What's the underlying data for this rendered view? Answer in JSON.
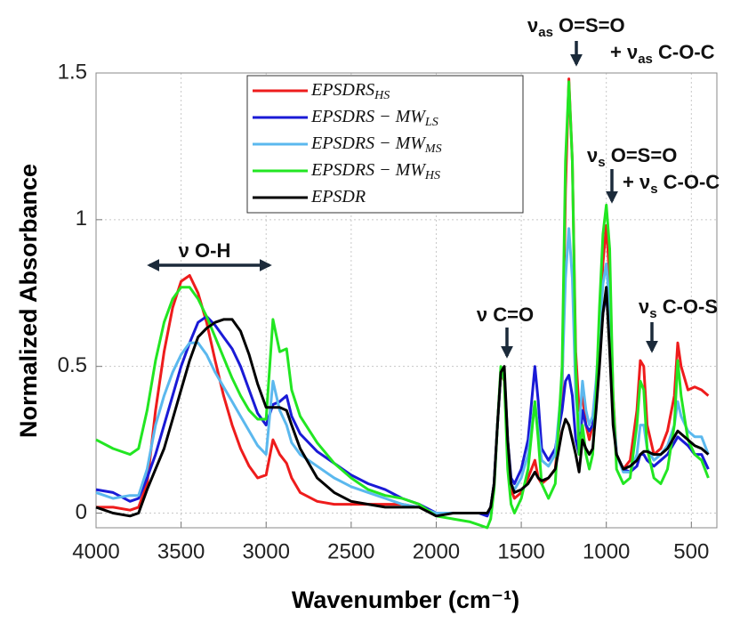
{
  "chart_data": {
    "type": "line",
    "x_label": "Wavenumber (cm⁻¹)",
    "y_label": "Normalized Absorbance",
    "xlim": [
      4000,
      350
    ],
    "ylim": [
      -0.05,
      1.5
    ],
    "xticks": [
      4000,
      3500,
      3000,
      2500,
      2000,
      1500,
      1000,
      500
    ],
    "yticks": [
      0,
      0.5,
      1,
      1.5
    ],
    "grid": true,
    "legend": "top",
    "x": [
      4000,
      3900,
      3800,
      3750,
      3700,
      3650,
      3600,
      3550,
      3500,
      3450,
      3400,
      3350,
      3300,
      3250,
      3200,
      3150,
      3100,
      3050,
      3000,
      2960,
      2920,
      2880,
      2850,
      2800,
      2700,
      2600,
      2500,
      2400,
      2300,
      2200,
      2100,
      2000,
      1900,
      1800,
      1750,
      1700,
      1680,
      1660,
      1640,
      1620,
      1600,
      1580,
      1560,
      1540,
      1500,
      1460,
      1420,
      1400,
      1380,
      1340,
      1300,
      1260,
      1240,
      1220,
      1200,
      1180,
      1160,
      1140,
      1120,
      1100,
      1080,
      1060,
      1040,
      1020,
      1000,
      980,
      960,
      940,
      900,
      860,
      820,
      800,
      780,
      760,
      720,
      680,
      640,
      600,
      580,
      560,
      520,
      480,
      440,
      400
    ],
    "series": [
      {
        "name": "EPSDRS",
        "name_sub": "HS",
        "color": "#ee1c1c",
        "values": [
          0.02,
          0.02,
          0.01,
          0.02,
          0.1,
          0.35,
          0.55,
          0.7,
          0.79,
          0.81,
          0.75,
          0.65,
          0.52,
          0.4,
          0.3,
          0.22,
          0.16,
          0.12,
          0.13,
          0.25,
          0.2,
          0.17,
          0.12,
          0.07,
          0.04,
          0.03,
          0.03,
          0.03,
          0.03,
          0.03,
          0.02,
          0,
          0,
          0,
          0,
          0,
          0.02,
          0.1,
          0.3,
          0.48,
          0.45,
          0.2,
          0.08,
          0.05,
          0.07,
          0.12,
          0.18,
          0.12,
          0.1,
          0.12,
          0.15,
          0.4,
          1.1,
          1.48,
          1.2,
          0.55,
          0.35,
          0.4,
          0.3,
          0.25,
          0.3,
          0.4,
          0.6,
          0.85,
          0.98,
          0.8,
          0.4,
          0.2,
          0.15,
          0.18,
          0.35,
          0.52,
          0.5,
          0.3,
          0.2,
          0.22,
          0.28,
          0.4,
          0.58,
          0.5,
          0.42,
          0.43,
          0.42,
          0.4
        ]
      },
      {
        "name": "EPSDRS − MW",
        "name_sub": "LS",
        "color": "#1a1ad6",
        "values": [
          0.08,
          0.07,
          0.04,
          0.05,
          0.12,
          0.2,
          0.3,
          0.4,
          0.5,
          0.58,
          0.65,
          0.67,
          0.64,
          0.6,
          0.56,
          0.5,
          0.42,
          0.34,
          0.3,
          0.37,
          0.38,
          0.4,
          0.33,
          0.27,
          0.21,
          0.17,
          0.13,
          0.1,
          0.08,
          0.05,
          0.03,
          0,
          0,
          0,
          0,
          -0.01,
          0.02,
          0.1,
          0.3,
          0.48,
          0.48,
          0.25,
          0.12,
          0.1,
          0.15,
          0.25,
          0.5,
          0.38,
          0.22,
          0.18,
          0.22,
          0.35,
          0.45,
          0.47,
          0.4,
          0.25,
          0.2,
          0.35,
          0.3,
          0.28,
          0.3,
          0.4,
          0.55,
          0.68,
          0.75,
          0.6,
          0.35,
          0.2,
          0.15,
          0.14,
          0.16,
          0.2,
          0.2,
          0.18,
          0.16,
          0.18,
          0.2,
          0.24,
          0.26,
          0.25,
          0.23,
          0.2,
          0.2,
          0.15
        ]
      },
      {
        "name": "EPSDRS − MW",
        "name_sub": "MS",
        "color": "#5bb8ee",
        "values": [
          0.07,
          0.05,
          0.06,
          0.06,
          0.15,
          0.3,
          0.4,
          0.48,
          0.54,
          0.58,
          0.58,
          0.54,
          0.48,
          0.43,
          0.38,
          0.33,
          0.28,
          0.23,
          0.2,
          0.45,
          0.35,
          0.3,
          0.24,
          0.2,
          0.16,
          0.12,
          0.09,
          0.07,
          0.05,
          0.03,
          0.02,
          0,
          0,
          0,
          0,
          0,
          0.02,
          0.1,
          0.3,
          0.48,
          0.48,
          0.22,
          0.1,
          0.08,
          0.12,
          0.2,
          0.38,
          0.28,
          0.18,
          0.16,
          0.2,
          0.45,
          0.8,
          0.97,
          0.8,
          0.4,
          0.28,
          0.45,
          0.35,
          0.3,
          0.33,
          0.45,
          0.62,
          0.78,
          0.85,
          0.7,
          0.38,
          0.2,
          0.14,
          0.14,
          0.2,
          0.3,
          0.3,
          0.22,
          0.18,
          0.2,
          0.23,
          0.3,
          0.38,
          0.33,
          0.28,
          0.26,
          0.26,
          0.2
        ]
      },
      {
        "name": "EPSDRS − MW",
        "name_sub": "HS",
        "color": "#22e622",
        "values": [
          0.25,
          0.22,
          0.2,
          0.22,
          0.35,
          0.52,
          0.65,
          0.73,
          0.77,
          0.77,
          0.73,
          0.67,
          0.6,
          0.53,
          0.46,
          0.4,
          0.35,
          0.32,
          0.32,
          0.66,
          0.55,
          0.56,
          0.42,
          0.33,
          0.24,
          0.17,
          0.12,
          0.08,
          0.06,
          0.05,
          0.03,
          -0.01,
          -0.02,
          -0.03,
          -0.04,
          -0.05,
          -0.02,
          0.08,
          0.3,
          0.5,
          0.45,
          0.15,
          0.03,
          0,
          0.05,
          0.15,
          0.38,
          0.25,
          0.1,
          0.05,
          0.1,
          0.5,
          1.2,
          1.47,
          1.2,
          0.5,
          0.2,
          0.3,
          0.2,
          0.15,
          0.2,
          0.4,
          0.7,
          0.95,
          1.05,
          0.9,
          0.4,
          0.15,
          0.1,
          0.12,
          0.3,
          0.45,
          0.42,
          0.22,
          0.12,
          0.1,
          0.15,
          0.3,
          0.52,
          0.4,
          0.25,
          0.2,
          0.18,
          0.12
        ]
      },
      {
        "name": "EPSDR",
        "color": "#000000",
        "values": [
          0.02,
          0,
          -0.01,
          0,
          0.08,
          0.15,
          0.22,
          0.32,
          0.42,
          0.52,
          0.6,
          0.63,
          0.65,
          0.66,
          0.66,
          0.62,
          0.54,
          0.44,
          0.36,
          0.36,
          0.36,
          0.35,
          0.3,
          0.22,
          0.12,
          0.07,
          0.04,
          0.03,
          0.02,
          0.02,
          0.02,
          -0.01,
          0,
          0,
          0,
          0,
          0.02,
          0.1,
          0.3,
          0.48,
          0.5,
          0.25,
          0.1,
          0.07,
          0.08,
          0.1,
          0.14,
          0.12,
          0.11,
          0.12,
          0.15,
          0.28,
          0.32,
          0.3,
          0.25,
          0.2,
          0.14,
          0.25,
          0.22,
          0.2,
          0.22,
          0.35,
          0.5,
          0.68,
          0.77,
          0.55,
          0.3,
          0.2,
          0.15,
          0.16,
          0.18,
          0.2,
          0.21,
          0.21,
          0.2,
          0.2,
          0.22,
          0.26,
          0.28,
          0.27,
          0.25,
          0.23,
          0.22,
          0.2
        ]
      }
    ],
    "annotations": [
      {
        "lines": [
          [
            {
              "text": "ν O-H"
            }
          ]
        ]
      },
      {
        "lines": [
          [
            {
              "text": "ν C=O"
            }
          ]
        ]
      },
      {
        "lines": [
          [
            {
              "text": "ν"
            },
            {
              "sub": "as"
            },
            {
              "text": " O=S=O"
            }
          ],
          [
            {
              "text": "+ ν"
            },
            {
              "sub": "as"
            },
            {
              "text": " C-O-C"
            }
          ]
        ]
      },
      {
        "lines": [
          [
            {
              "text": "ν"
            },
            {
              "sub": "s"
            },
            {
              "text": " O=S=O"
            }
          ],
          [
            {
              "text": "+ ν"
            },
            {
              "sub": "s"
            },
            {
              "text": " C-O-C"
            }
          ]
        ]
      },
      {
        "lines": [
          [
            {
              "text": "ν"
            },
            {
              "sub": "s"
            },
            {
              "text": " C-O-S"
            }
          ]
        ]
      }
    ]
  }
}
